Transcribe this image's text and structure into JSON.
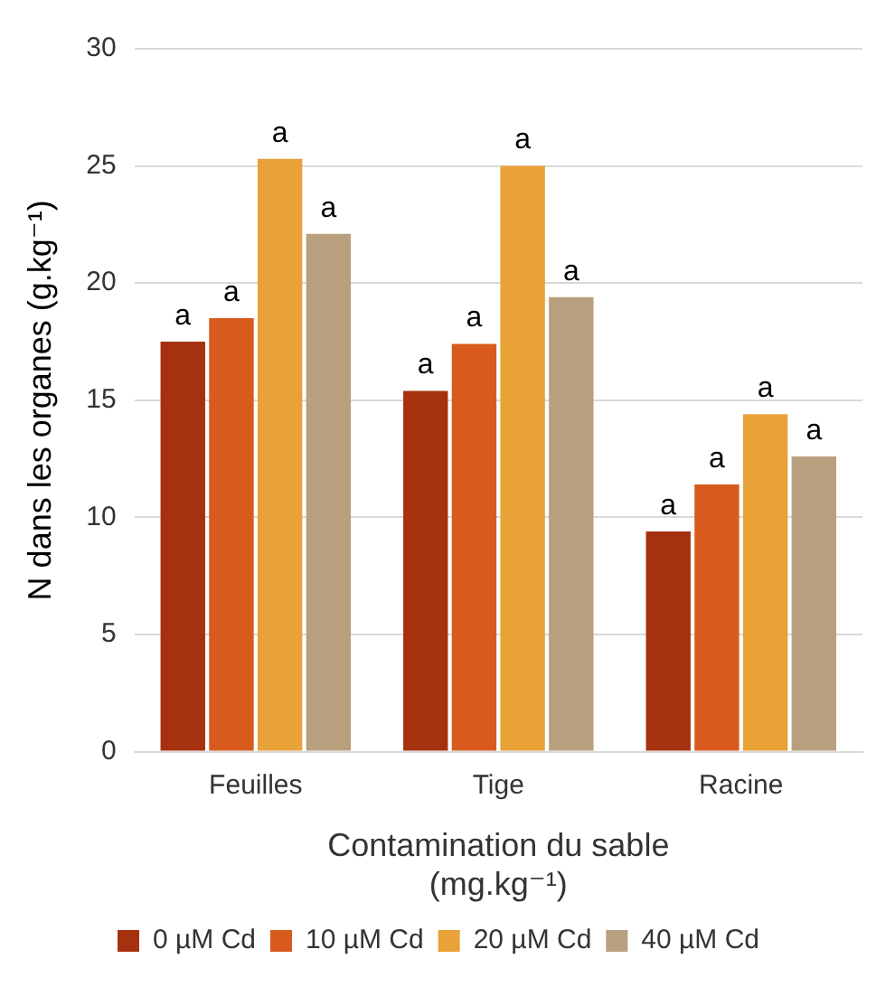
{
  "chart_data": {
    "type": "bar",
    "xlabel": "Contamination du sable\n(mg.kg⁻¹)",
    "ylabel": "N dans les organes (g.kg⁻¹)",
    "categories": [
      "Feuilles",
      "Tige",
      "Racine"
    ],
    "series": [
      {
        "name": "0 µM Cd",
        "color": "#a5310f",
        "values": [
          17.5,
          15.4,
          9.4
        ],
        "value_labels": [
          "a",
          "a",
          "a"
        ]
      },
      {
        "name": "10 µM Cd",
        "color": "#d85b1d",
        "values": [
          18.5,
          17.4,
          11.4
        ],
        "value_labels": [
          "a",
          "a",
          "a"
        ]
      },
      {
        "name": "20 µM Cd",
        "color": "#e8a238",
        "values": [
          25.3,
          25.0,
          14.4
        ],
        "value_labels": [
          "a",
          "a",
          "a"
        ]
      },
      {
        "name": "40 µM Cd",
        "color": "#b8a07e",
        "values": [
          22.1,
          19.4,
          12.6
        ],
        "value_labels": [
          "a",
          "a",
          "a"
        ]
      }
    ],
    "ylim": [
      0,
      30
    ],
    "yticks": [
      0,
      5,
      10,
      15,
      20,
      25,
      30
    ],
    "grid": "y",
    "legend": "bottom"
  }
}
